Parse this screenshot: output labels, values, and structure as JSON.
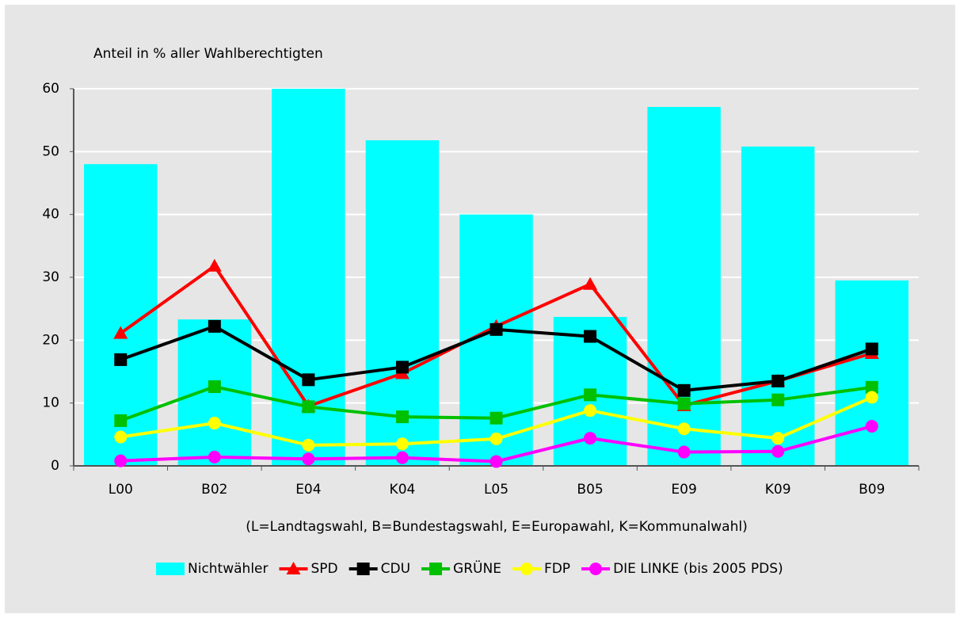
{
  "chart_data": {
    "type": "combo",
    "y_label": "Anteil in % aller Wahlberechtigten",
    "x_note": "(L=Landtagswahl, B=Bundestagswahl, E=Europawahl, K=Kommunalwahl)",
    "categories": [
      "L00",
      "B02",
      "E04",
      "K04",
      "L05",
      "B05",
      "E09",
      "K09",
      "B09"
    ],
    "ylim": [
      0,
      60
    ],
    "yticks": [
      0,
      10,
      20,
      30,
      40,
      50,
      60
    ],
    "grid": true,
    "series": [
      {
        "name": "Nichtwähler",
        "type": "bar",
        "color": "#00ffff",
        "values": [
          48,
          23.3,
          60,
          51.8,
          40,
          23.7,
          57.1,
          50.8,
          29.5
        ]
      },
      {
        "name": "SPD",
        "type": "line",
        "marker": "triangle",
        "color": "#ff0000",
        "values": [
          21.1,
          31.8,
          9.5,
          14.7,
          22.2,
          28.9,
          9.6,
          13.5,
          17.9
        ]
      },
      {
        "name": "CDU",
        "type": "line",
        "marker": "square",
        "color": "#000000",
        "values": [
          16.9,
          22.2,
          13.7,
          15.7,
          21.7,
          20.6,
          12.0,
          13.5,
          18.6
        ]
      },
      {
        "name": "GRÜNE",
        "type": "line",
        "marker": "square",
        "color": "#00c000",
        "values": [
          7.2,
          12.6,
          9.4,
          7.8,
          7.6,
          11.3,
          9.9,
          10.5,
          12.5
        ]
      },
      {
        "name": "FDP",
        "type": "line",
        "marker": "circle",
        "color": "#ffff00",
        "values": [
          4.6,
          6.8,
          3.3,
          3.5,
          4.3,
          8.8,
          5.9,
          4.4,
          10.9
        ]
      },
      {
        "name": "DIE LINKE (bis 2005 PDS)",
        "type": "line",
        "marker": "circle",
        "color": "#ff00ff",
        "values": [
          0.8,
          1.4,
          1.1,
          1.3,
          0.7,
          4.4,
          2.2,
          2.3,
          6.3
        ]
      }
    ]
  }
}
